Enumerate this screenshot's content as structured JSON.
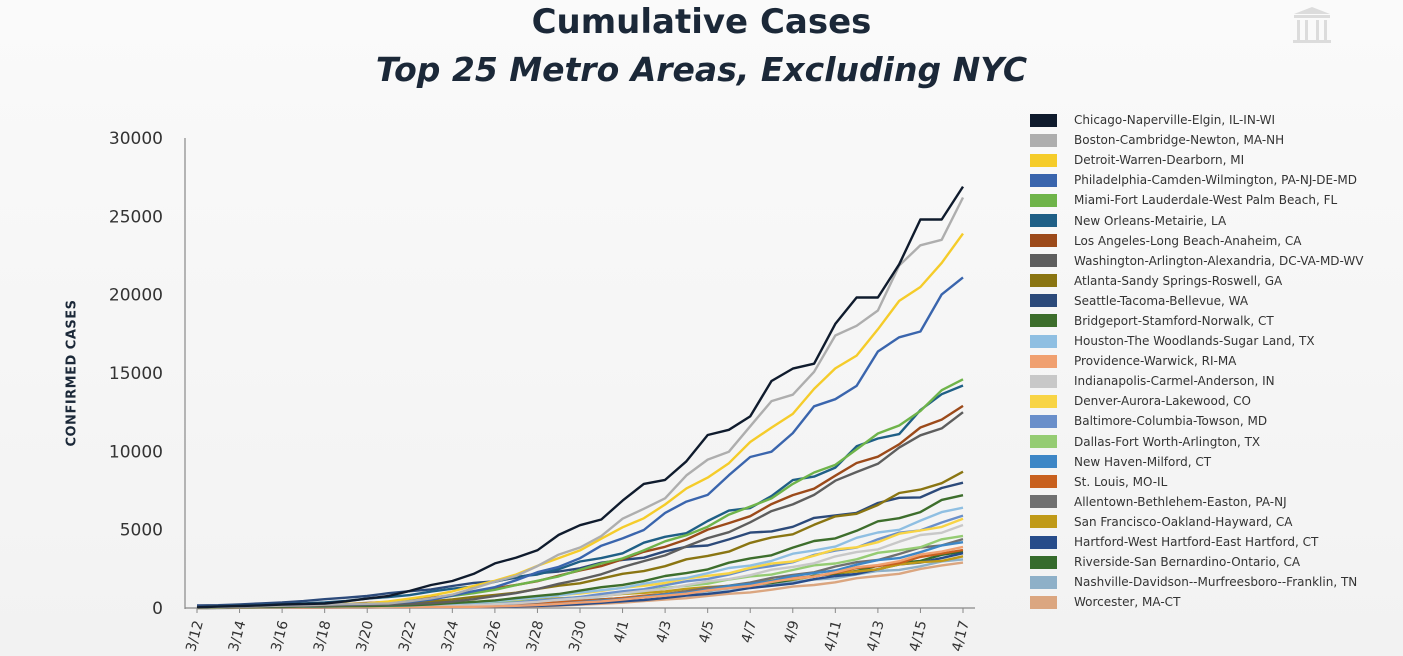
{
  "header": {
    "title": "Cumulative Cases",
    "subtitle": "Top 25 Metro Areas, Excluding NYC"
  },
  "logo_icon": "capitol-building-icon",
  "chart_data": {
    "type": "line",
    "title": "Cumulative Cases",
    "subtitle": "Top 25 Metro Areas, Excluding NYC",
    "xlabel": "",
    "ylabel": "CONFIRMED CASES",
    "ylim": [
      0,
      30000
    ],
    "yticks": [
      0,
      5000,
      10000,
      15000,
      20000,
      25000,
      30000
    ],
    "x": [
      "3/12",
      "3/13",
      "3/14",
      "3/15",
      "3/16",
      "3/17",
      "3/18",
      "3/19",
      "3/20",
      "3/21",
      "3/22",
      "3/23",
      "3/24",
      "3/25",
      "3/26",
      "3/27",
      "3/28",
      "3/29",
      "3/30",
      "3/31",
      "4/1",
      "4/2",
      "4/3",
      "4/4",
      "4/5",
      "4/6",
      "4/7",
      "4/8",
      "4/9",
      "4/10",
      "4/11",
      "4/12",
      "4/13",
      "4/14",
      "4/15",
      "4/16",
      "4/17"
    ],
    "xtick_labels": [
      "3/12",
      "3/14",
      "3/16",
      "3/18",
      "3/20",
      "3/22",
      "3/24",
      "3/26",
      "3/28",
      "3/30",
      "4/1",
      "4/3",
      "4/5",
      "4/7",
      "4/9",
      "4/11",
      "4/13",
      "4/15",
      "4/17"
    ],
    "grid": false,
    "legend_position": "right",
    "series": [
      {
        "name": "Chicago-Naperville-Elgin, IL-IN-WI",
        "color": "#0f1b2d",
        "end": 26900,
        "onset": 6,
        "k": 0.1,
        "wiggle": 0.05
      },
      {
        "name": "Boston-Cambridge-Newton, MA-NH",
        "color": "#aeaeae",
        "end": 26200,
        "onset": 9,
        "k": 0.07,
        "wiggle": 0.04
      },
      {
        "name": "Detroit-Warren-Dearborn, MI",
        "color": "#f5cc2a",
        "end": 23900,
        "onset": 8,
        "k": 0.12,
        "wiggle": 0.02
      },
      {
        "name": "Philadelphia-Camden-Wilmington, PA-NJ-DE-MD",
        "color": "#3a65ad",
        "end": 21100,
        "onset": 9,
        "k": 0.07,
        "wiggle": 0.04
      },
      {
        "name": "Miami-Fort Lauderdale-West Palm Beach, FL",
        "color": "#6fb44a",
        "end": 14600,
        "onset": 8,
        "k": 0.11,
        "wiggle": 0.02
      },
      {
        "name": "New Orleans-Metairie, LA",
        "color": "#1f5f86",
        "end": 14200,
        "onset": 5,
        "k": 0.18,
        "wiggle": 0.04
      },
      {
        "name": "Los Angeles-Long Beach-Anaheim, CA",
        "color": "#9c4a1a",
        "end": 12900,
        "onset": 7,
        "k": 0.1,
        "wiggle": 0.02
      },
      {
        "name": "Washington-Arlington-Alexandria, DC-VA-MD-WV",
        "color": "#5e5e5e",
        "end": 12500,
        "onset": 10,
        "k": 0.05,
        "wiggle": 0.02
      },
      {
        "name": "Atlanta-Sandy Springs-Roswell, GA",
        "color": "#8a7512",
        "end": 8700,
        "onset": 7,
        "k": 0.09,
        "wiggle": 0.03
      },
      {
        "name": "Seattle-Tacoma-Bellevue, WA",
        "color": "#2c4a7a",
        "end": 8000,
        "onset": 0,
        "k": 0.03,
        "wiggle": 0.03
      },
      {
        "name": "Bridgeport-Stamford-Norwalk, CT",
        "color": "#3d6e2c",
        "end": 7200,
        "onset": 9,
        "k": 0.09,
        "wiggle": 0.03
      },
      {
        "name": "Houston-The Woodlands-Sugar Land, TX",
        "color": "#8fbfe2",
        "end": 6400,
        "onset": 9,
        "k": 0.1,
        "wiggle": 0.03
      },
      {
        "name": "Providence-Warwick, RI-MA",
        "color": "#f0a070",
        "end": 3900,
        "onset": 13,
        "k": 0.07,
        "wiggle": 0.03
      },
      {
        "name": "Indianapolis-Carmel-Anderson, IN",
        "color": "#c8c8c8",
        "end": 5300,
        "onset": 11,
        "k": 0.09,
        "wiggle": 0.03
      },
      {
        "name": "Denver-Aurora-Lakewood, CO",
        "color": "#f8d445",
        "end": 5700,
        "onset": 8,
        "k": 0.11,
        "wiggle": 0.03
      },
      {
        "name": "Baltimore-Columbia-Towson, MD",
        "color": "#6a8fca",
        "end": 5900,
        "onset": 11,
        "k": 0.07,
        "wiggle": 0.03
      },
      {
        "name": "Dallas-Fort Worth-Arlington, TX",
        "color": "#95cc73",
        "end": 4600,
        "onset": 9,
        "k": 0.1,
        "wiggle": 0.03
      },
      {
        "name": "New Haven-Milford, CT",
        "color": "#3d86c6",
        "end": 4200,
        "onset": 13,
        "k": 0.07,
        "wiggle": 0.03
      },
      {
        "name": "St. Louis, MO-IL",
        "color": "#c8601e",
        "end": 3700,
        "onset": 11,
        "k": 0.08,
        "wiggle": 0.03
      },
      {
        "name": "Allentown-Bethlehem-Easton, PA-NJ",
        "color": "#707070",
        "end": 4400,
        "onset": 13,
        "k": 0.06,
        "wiggle": 0.03
      },
      {
        "name": "San Francisco-Oakland-Hayward, CA",
        "color": "#c09a18",
        "end": 3300,
        "onset": 5,
        "k": 0.13,
        "wiggle": 0.03
      },
      {
        "name": "Hartford-West Hartford-East Hartford, CT",
        "color": "#274c8a",
        "end": 3500,
        "onset": 14,
        "k": 0.06,
        "wiggle": 0.03
      },
      {
        "name": "Riverside-San Bernardino-Ontario, CA",
        "color": "#356b2c",
        "end": 3600,
        "onset": 11,
        "k": 0.08,
        "wiggle": 0.03
      },
      {
        "name": "Nashville-Davidson--Murfreesboro--Franklin, TN",
        "color": "#8eb0c8",
        "end": 3100,
        "onset": 9,
        "k": 0.1,
        "wiggle": 0.03
      },
      {
        "name": "Worcester, MA-CT",
        "color": "#dba680",
        "end": 2900,
        "onset": 14,
        "k": 0.06,
        "wiggle": 0.03
      }
    ]
  }
}
